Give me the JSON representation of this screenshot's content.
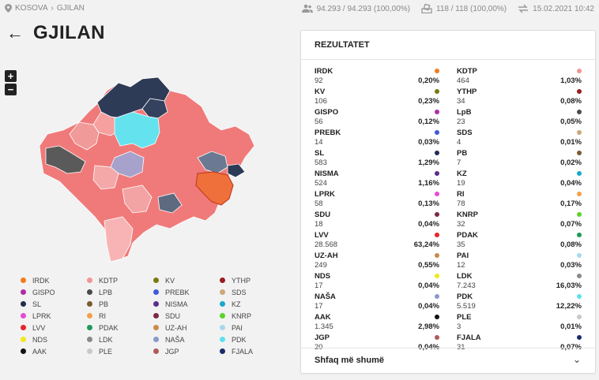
{
  "breadcrumb": {
    "root": "KOSOVA",
    "separator": "›",
    "current": "GJILAN"
  },
  "stats": {
    "voters": "94.293 / 94.293 (100,00%)",
    "stations": "118 / 118 (100,00%)",
    "updated": "15.02.2021 10:42"
  },
  "page": {
    "title": "GJILAN"
  },
  "zoom": {
    "in": "+",
    "out": "−"
  },
  "legend": [
    {
      "name": "IRDK",
      "color": "#f07c1e"
    },
    {
      "name": "KDTP",
      "color": "#f29595"
    },
    {
      "name": "KV",
      "color": "#7a7a10"
    },
    {
      "name": "YTHP",
      "color": "#9b1c1c"
    },
    {
      "name": "GISPO",
      "color": "#b02da8"
    },
    {
      "name": "LPB",
      "color": "#4a4a4a"
    },
    {
      "name": "PREBK",
      "color": "#3e5bd8"
    },
    {
      "name": "SDS",
      "color": "#c9a87a"
    },
    {
      "name": "SL",
      "color": "#1f2d4f"
    },
    {
      "name": "PB",
      "color": "#7a5a2e"
    },
    {
      "name": "NISMA",
      "color": "#5a2d8a"
    },
    {
      "name": "KZ",
      "color": "#1aa8c9"
    },
    {
      "name": "LPRK",
      "color": "#e84ad8"
    },
    {
      "name": "RI",
      "color": "#f2a14a"
    },
    {
      "name": "SDU",
      "color": "#7a2a44"
    },
    {
      "name": "KNRP",
      "color": "#5ed12a"
    },
    {
      "name": "LVV",
      "color": "#e5252b"
    },
    {
      "name": "PDAK",
      "color": "#1f9a5a"
    },
    {
      "name": "UZ-AH",
      "color": "#c98a4a"
    },
    {
      "name": "PAI",
      "color": "#a8d8f0"
    },
    {
      "name": "NDS",
      "color": "#f2e81a"
    },
    {
      "name": "LDK",
      "color": "#8a8a8a"
    },
    {
      "name": "NAŠA",
      "color": "#8a9ac9"
    },
    {
      "name": "PDK",
      "color": "#5ee0f0"
    },
    {
      "name": "AAK",
      "color": "#111111"
    },
    {
      "name": "PLE",
      "color": "#c8c8c8"
    },
    {
      "name": "JGP",
      "color": "#b05a5a"
    },
    {
      "name": "FJALA",
      "color": "#1a2a6a"
    }
  ],
  "results": {
    "title": "REZULTATET",
    "items": [
      {
        "name": "IRDK",
        "votes": "92",
        "pct": "0,20%",
        "color": "#f07c1e"
      },
      {
        "name": "KDTP",
        "votes": "464",
        "pct": "1,03%",
        "color": "#f29595"
      },
      {
        "name": "KV",
        "votes": "106",
        "pct": "0,23%",
        "color": "#7a7a10"
      },
      {
        "name": "YTHP",
        "votes": "34",
        "pct": "0,08%",
        "color": "#9b1c1c"
      },
      {
        "name": "GISPO",
        "votes": "56",
        "pct": "0,12%",
        "color": "#b02da8"
      },
      {
        "name": "LpB",
        "votes": "23",
        "pct": "0,05%",
        "color": "#4a4a4a"
      },
      {
        "name": "PREBK",
        "votes": "14",
        "pct": "0,03%",
        "color": "#3e5bd8"
      },
      {
        "name": "SDS",
        "votes": "4",
        "pct": "0,01%",
        "color": "#c9a87a"
      },
      {
        "name": "SL",
        "votes": "583",
        "pct": "1,29%",
        "color": "#1f2d4f"
      },
      {
        "name": "PB",
        "votes": "7",
        "pct": "0,02%",
        "color": "#7a5a2e"
      },
      {
        "name": "NISMA",
        "votes": "524",
        "pct": "1,16%",
        "color": "#5a2d8a"
      },
      {
        "name": "KZ",
        "votes": "19",
        "pct": "0,04%",
        "color": "#1aa8c9"
      },
      {
        "name": "LPRK",
        "votes": "58",
        "pct": "0,13%",
        "color": "#e84ad8"
      },
      {
        "name": "RI",
        "votes": "78",
        "pct": "0,17%",
        "color": "#f2a14a"
      },
      {
        "name": "SDU",
        "votes": "18",
        "pct": "0,04%",
        "color": "#7a2a44"
      },
      {
        "name": "KNRP",
        "votes": "32",
        "pct": "0,07%",
        "color": "#5ed12a"
      },
      {
        "name": "LVV",
        "votes": "28.568",
        "pct": "63,24%",
        "color": "#e5252b"
      },
      {
        "name": "PDAK",
        "votes": "35",
        "pct": "0,08%",
        "color": "#1f9a5a"
      },
      {
        "name": "UZ-AH",
        "votes": "249",
        "pct": "0,55%",
        "color": "#c98a4a"
      },
      {
        "name": "PAI",
        "votes": "12",
        "pct": "0,03%",
        "color": "#a8d8f0"
      },
      {
        "name": "NDS",
        "votes": "17",
        "pct": "0,04%",
        "color": "#f2e81a"
      },
      {
        "name": "LDK",
        "votes": "7.243",
        "pct": "16,03%",
        "color": "#8a8a8a"
      },
      {
        "name": "NAŠA",
        "votes": "17",
        "pct": "0,04%",
        "color": "#8a9ac9"
      },
      {
        "name": "PDK",
        "votes": "5.519",
        "pct": "12,22%",
        "color": "#5ee0f0"
      },
      {
        "name": "AAK",
        "votes": "1.345",
        "pct": "2,98%",
        "color": "#111111"
      },
      {
        "name": "PLE",
        "votes": "3",
        "pct": "0,01%",
        "color": "#c8c8c8"
      },
      {
        "name": "JGP",
        "votes": "20",
        "pct": "0,04%",
        "color": "#b05a5a"
      },
      {
        "name": "FJALA",
        "votes": "31",
        "pct": "0,07%",
        "color": "#1a2a6a"
      }
    ],
    "show_more": "Shfaq më shumë"
  }
}
